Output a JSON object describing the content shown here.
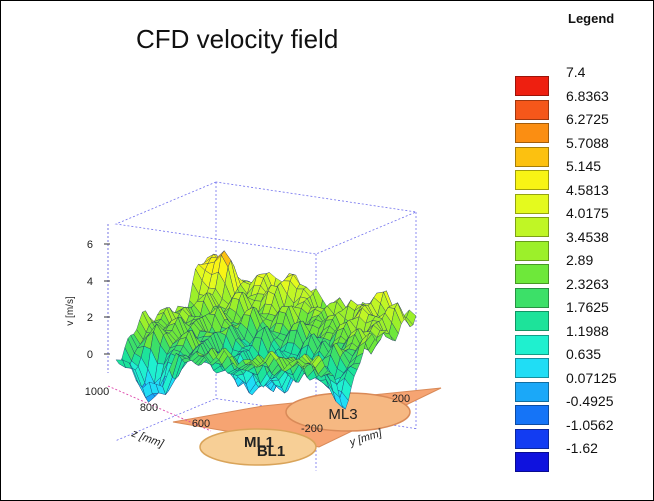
{
  "chart_data": {
    "type": "surface",
    "title": "CFD velocity field",
    "xlabel": "z [mm]",
    "ylabel": "y [mm]",
    "zlabel": "v [m/s]",
    "z_ticks": [
      "0",
      "2",
      "4",
      "6"
    ],
    "zlim": [
      -1.62,
      7.4
    ],
    "x_ticks": [
      "1000",
      "800",
      "600"
    ],
    "y_ticks": [
      "-200",
      "200"
    ],
    "annotations": [
      "ML1",
      "ML3",
      "BL1"
    ],
    "legend": {
      "title": "Legend",
      "placement": "right",
      "levels": [
        {
          "value": "7.4",
          "color": "#ee1f10"
        },
        {
          "value": "6.8363",
          "color": "#f5571a"
        },
        {
          "value": "6.2725",
          "color": "#fb8e12"
        },
        {
          "value": "5.7088",
          "color": "#fcc110"
        },
        {
          "value": "5.145",
          "color": "#f8f415"
        },
        {
          "value": "4.5813",
          "color": "#e4fa1e"
        },
        {
          "value": "4.0175",
          "color": "#c0f625"
        },
        {
          "value": "3.4538",
          "color": "#9cf02a"
        },
        {
          "value": "2.89",
          "color": "#6ee83a"
        },
        {
          "value": "2.3263",
          "color": "#3ce068"
        },
        {
          "value": "1.7625",
          "color": "#1de39a"
        },
        {
          "value": "1.1988",
          "color": "#1ff0cf"
        },
        {
          "value": "0.635",
          "color": "#20ddf5"
        },
        {
          "value": "0.07125",
          "color": "#1ba8f8"
        },
        {
          "value": "-0.4925",
          "color": "#1574f7"
        },
        {
          "value": "-1.0562",
          "color": "#123cf2"
        },
        {
          "value": "-1.62",
          "color": "#0f12de"
        }
      ]
    }
  }
}
